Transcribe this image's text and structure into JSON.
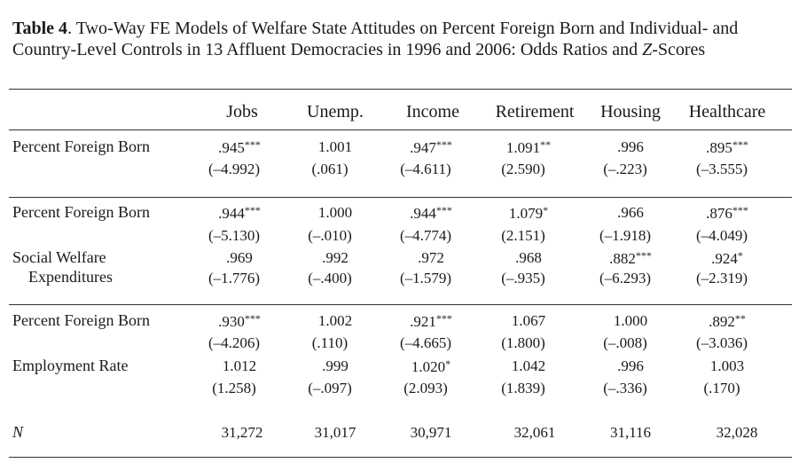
{
  "caption": {
    "label": "Table 4",
    "text_pre": ". Two-Way FE Models of Welfare State Attitudes on Percent Foreign Born and Individual- and Country-Level Controls in 13 Affluent Democracies in 1996 and 2006: Odds Ratios and ",
    "italic": "Z",
    "text_post": "-Scores"
  },
  "columns": [
    "Jobs",
    "Unemp.",
    "Income",
    "Retirement",
    "Housing",
    "Healthcare"
  ],
  "panels": [
    {
      "rows": [
        {
          "label": "Percent Foreign Born",
          "values": [
            ".945***",
            "1.001",
            ".947***",
            "1.091**",
            ".996",
            ".895***"
          ],
          "zscores": [
            "(–4.992)",
            "(.061)",
            "(–4.611)",
            "(2.590)",
            "(–.223)",
            "(–3.555)"
          ]
        }
      ]
    },
    {
      "rows": [
        {
          "label": "Percent Foreign Born",
          "values": [
            ".944***",
            "1.000",
            ".944***",
            "1.079*",
            ".966",
            ".876***"
          ],
          "zscores": [
            "(–5.130)",
            "(–.010)",
            "(–4.774)",
            "(2.151)",
            "(–1.918)",
            "(–4.049)"
          ]
        },
        {
          "label": "Social Welfare",
          "label2": "Expenditures",
          "values": [
            ".969",
            ".992",
            ".972",
            ".968",
            ".882***",
            ".924*"
          ],
          "zscores": [
            "(–1.776)",
            "(–.400)",
            "(–1.579)",
            "(–.935)",
            "(–6.293)",
            "(–2.319)"
          ]
        }
      ]
    },
    {
      "rows": [
        {
          "label": "Percent Foreign Born",
          "values": [
            ".930***",
            "1.002",
            ".921***",
            "1.067",
            "1.000",
            ".892**"
          ],
          "zscores": [
            "(–4.206)",
            "(.110)",
            "(–4.665)",
            "(1.800)",
            "(–.008)",
            "(–3.036)"
          ]
        },
        {
          "label": "Employment Rate",
          "values": [
            "1.012",
            ".999",
            "1.020*",
            "1.042",
            ".996",
            "1.003"
          ],
          "zscores": [
            "(1.258)",
            "(–.097)",
            "(2.093)",
            "(1.839)",
            "(–.336)",
            "(.170)"
          ]
        }
      ]
    }
  ],
  "n_row": {
    "label": "N",
    "values": [
      "31,272",
      "31,017",
      "30,971",
      "32,061",
      "31,116",
      "32,028"
    ]
  }
}
